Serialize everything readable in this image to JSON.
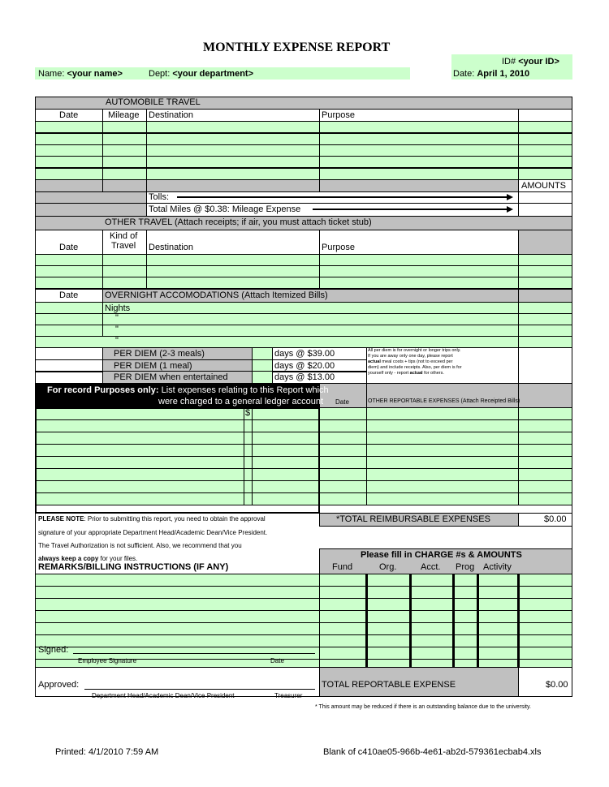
{
  "title": "MONTHLY EXPENSE REPORT",
  "header": {
    "id_label": "ID#",
    "id_value": "<your ID>",
    "name_label": "Name:",
    "name_value": "<your name>",
    "dept_label": "Dept:",
    "dept_value": "<your department>",
    "date_label": "Date:",
    "date_value": "April 1, 2010"
  },
  "auto": {
    "heading": "AUTOMOBILE TRAVEL",
    "col_date": "Date",
    "col_mileage": "Mileage",
    "col_destination": "Destination",
    "col_purpose": "Purpose",
    "amounts": "AMOUNTS",
    "tolls": "Tolls:",
    "total_miles": "Total Miles @ $0.38: Mileage Expense"
  },
  "other": {
    "heading": "OTHER TRAVEL (Attach receipts; if air, you must attach ticket stub)",
    "col_date": "Date",
    "col_kind": "Kind of",
    "col_kind2": "Travel",
    "col_destination": "Destination",
    "col_purpose": "Purpose"
  },
  "overnight": {
    "col_date": "Date",
    "heading": "OVERNIGHT ACCOMODATIONS (Attach Itemized Bills)",
    "nights": "Nights",
    "ditto": "\""
  },
  "per_diem": {
    "rows": [
      {
        "label": "PER DIEM (2-3 meals)",
        "rate": "days @ $39.00"
      },
      {
        "label": "PER DIEM (1 meal)",
        "rate": "days @ $20.00"
      },
      {
        "label": "PER DIEM when entertained",
        "rate": "days @ $13.00"
      }
    ],
    "note_1": "All per diem is for overnight or longer trips only.",
    "note_2": "If you are away only one day, please report",
    "note_3a": "actual",
    "note_3b": " meal costs + tips (not to exceed per",
    "note_4": "diem) and include receipts.  Also, per diem is for",
    "note_5a": "yourself only - report ",
    "note_5b": "actual",
    "note_5c": " for others."
  },
  "ledger": {
    "bold": "For record Purposes only:",
    "line1": " List expenses relating to this Report which",
    "line2": "were charged to a general ledger account",
    "dollar": "$",
    "col_date": "Date",
    "col_other": "OTHER REPORTABLE EXPENSES (Attach Receipted Bills)"
  },
  "note": {
    "label": "PLEASE NOTE",
    "l1": ":  Prior to submitting this report, you need to obtain the approval",
    "l2": "signature of your appropriate Department Head/Academic Dean/Vice President.",
    "l3": "The Travel Authorization is not sufficient.  Also, we recommend that you",
    "l4b": "always keep a copy",
    "l4": " for your files."
  },
  "total_reimbursable": {
    "label": "*TOTAL REIMBURSABLE EXPENSES",
    "value": "$0.00"
  },
  "remarks": "REMARKS/BILLING INSTRUCTIONS (IF ANY)",
  "charge": {
    "heading": "Please fill in CHARGE #s & AMOUNTS",
    "cols": [
      "Fund",
      "Org.",
      "Acct.",
      "Prog",
      "Activity"
    ]
  },
  "signed": {
    "label": "Signed:",
    "employee": "Employee Signature",
    "date": "Date"
  },
  "approved": {
    "label": "Approved:",
    "dept": "Department Head/Academic Dean/Vice President",
    "treasurer": "Treasurer"
  },
  "total_reportable": {
    "label": "TOTAL REPORTABLE EXPENSE",
    "value": "$0.00"
  },
  "footnote": "* This amount may be reduced if there is an outstanding balance due to the university.",
  "footer": {
    "printed": "Printed: 4/1/2010 7:59 AM",
    "file": "Blank of c410ae05-966b-4e61-ab2d-579361ecbab4.xls"
  }
}
